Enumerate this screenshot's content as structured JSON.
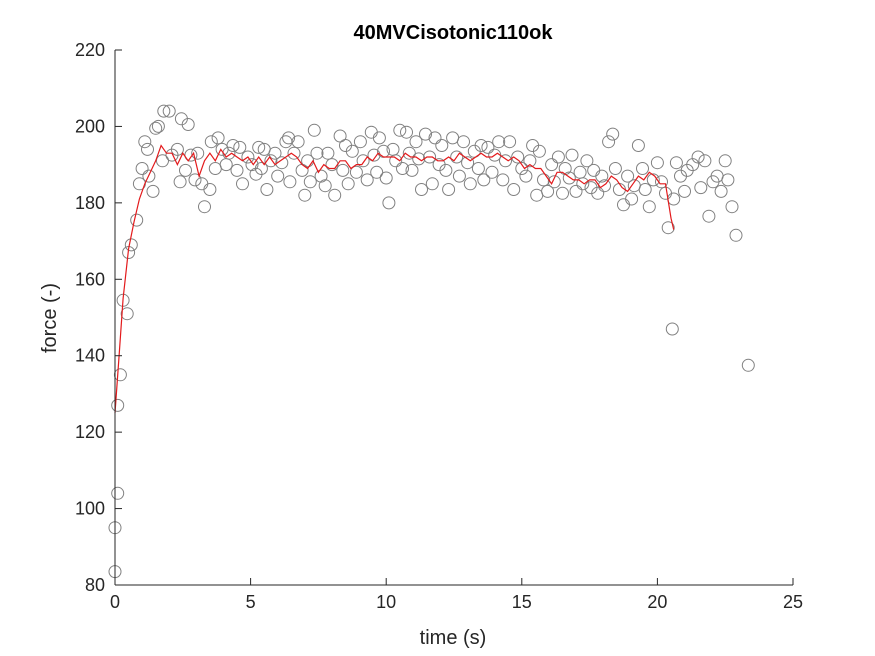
{
  "chart_data": {
    "type": "scatter",
    "title": "40MVCisotonic110ok",
    "xlabel": "time (s)",
    "ylabel": "force (-)",
    "xlim": [
      0,
      25
    ],
    "ylim": [
      80,
      220
    ],
    "xticks": [
      "0",
      "5",
      "10",
      "15",
      "20",
      "25"
    ],
    "yticks": [
      "80",
      "100",
      "120",
      "140",
      "160",
      "180",
      "200",
      "220"
    ],
    "grid": false,
    "legend": "none",
    "colors": {
      "points": "#808080",
      "line": "#e31a1c",
      "axes": "#262626"
    },
    "series": [
      {
        "type": "scatter",
        "points": [
          [
            0.0,
            83.5
          ],
          [
            0.0,
            95.0
          ],
          [
            0.1,
            104.0
          ],
          [
            0.1,
            127.0
          ],
          [
            0.2,
            135.0
          ],
          [
            0.3,
            154.5
          ],
          [
            0.45,
            151.0
          ],
          [
            0.5,
            167.0
          ],
          [
            0.6,
            169.0
          ],
          [
            0.8,
            175.5
          ],
          [
            0.9,
            185.0
          ],
          [
            1.0,
            189.0
          ],
          [
            1.1,
            196.0
          ],
          [
            1.2,
            194.0
          ],
          [
            1.25,
            187.0
          ],
          [
            1.4,
            183.0
          ],
          [
            1.5,
            199.5
          ],
          [
            1.6,
            200.0
          ],
          [
            1.75,
            191.0
          ],
          [
            1.8,
            204.0
          ],
          [
            2.0,
            204.0
          ],
          [
            2.1,
            192.5
          ],
          [
            2.3,
            194.0
          ],
          [
            2.4,
            185.5
          ],
          [
            2.45,
            202.0
          ],
          [
            2.6,
            188.5
          ],
          [
            2.7,
            200.5
          ],
          [
            2.8,
            192.5
          ],
          [
            2.95,
            186.0
          ],
          [
            3.05,
            193.0
          ],
          [
            3.2,
            185.0
          ],
          [
            3.3,
            179.0
          ],
          [
            3.5,
            183.5
          ],
          [
            3.55,
            196.0
          ],
          [
            3.7,
            189.0
          ],
          [
            3.8,
            197.0
          ],
          [
            3.95,
            194.0
          ],
          [
            4.1,
            190.0
          ],
          [
            4.2,
            193.0
          ],
          [
            4.35,
            195.0
          ],
          [
            4.5,
            188.5
          ],
          [
            4.6,
            194.5
          ],
          [
            4.7,
            185.0
          ],
          [
            4.9,
            192.0
          ],
          [
            5.05,
            190.0
          ],
          [
            5.2,
            187.5
          ],
          [
            5.3,
            194.5
          ],
          [
            5.4,
            189.0
          ],
          [
            5.5,
            194.0
          ],
          [
            5.6,
            183.5
          ],
          [
            5.75,
            191.0
          ],
          [
            5.9,
            193.0
          ],
          [
            6.0,
            187.0
          ],
          [
            6.15,
            190.5
          ],
          [
            6.3,
            196.0
          ],
          [
            6.4,
            197.0
          ],
          [
            6.45,
            185.5
          ],
          [
            6.6,
            193.0
          ],
          [
            6.75,
            196.0
          ],
          [
            6.9,
            188.5
          ],
          [
            7.0,
            182.0
          ],
          [
            7.1,
            191.0
          ],
          [
            7.2,
            185.5
          ],
          [
            7.35,
            199.0
          ],
          [
            7.45,
            193.0
          ],
          [
            7.6,
            187.0
          ],
          [
            7.75,
            184.5
          ],
          [
            7.85,
            193.0
          ],
          [
            8.0,
            190.0
          ],
          [
            8.1,
            182.0
          ],
          [
            8.3,
            197.5
          ],
          [
            8.4,
            188.5
          ],
          [
            8.5,
            195.0
          ],
          [
            8.6,
            185.0
          ],
          [
            8.75,
            193.5
          ],
          [
            8.9,
            188.0
          ],
          [
            9.05,
            196.0
          ],
          [
            9.15,
            191.0
          ],
          [
            9.3,
            186.0
          ],
          [
            9.45,
            198.5
          ],
          [
            9.55,
            192.5
          ],
          [
            9.65,
            188.0
          ],
          [
            9.75,
            197.0
          ],
          [
            9.9,
            193.5
          ],
          [
            10.0,
            186.5
          ],
          [
            10.1,
            180.0
          ],
          [
            10.25,
            194.0
          ],
          [
            10.35,
            191.0
          ],
          [
            10.5,
            199.0
          ],
          [
            10.6,
            189.0
          ],
          [
            10.75,
            198.5
          ],
          [
            10.85,
            193.0
          ],
          [
            10.95,
            188.5
          ],
          [
            11.1,
            196.0
          ],
          [
            11.2,
            191.5
          ],
          [
            11.3,
            183.5
          ],
          [
            11.45,
            198.0
          ],
          [
            11.6,
            192.0
          ],
          [
            11.7,
            185.0
          ],
          [
            11.8,
            197.0
          ],
          [
            11.95,
            190.0
          ],
          [
            12.05,
            195.0
          ],
          [
            12.2,
            188.5
          ],
          [
            12.3,
            183.5
          ],
          [
            12.45,
            197.0
          ],
          [
            12.6,
            192.0
          ],
          [
            12.7,
            187.0
          ],
          [
            12.85,
            196.0
          ],
          [
            13.0,
            190.5
          ],
          [
            13.1,
            185.0
          ],
          [
            13.25,
            193.5
          ],
          [
            13.4,
            189.0
          ],
          [
            13.5,
            195.0
          ],
          [
            13.6,
            186.0
          ],
          [
            13.75,
            194.5
          ],
          [
            13.9,
            188.0
          ],
          [
            14.0,
            192.5
          ],
          [
            14.15,
            196.0
          ],
          [
            14.3,
            186.0
          ],
          [
            14.4,
            191.0
          ],
          [
            14.55,
            196.0
          ],
          [
            14.7,
            183.5
          ],
          [
            14.85,
            192.0
          ],
          [
            15.0,
            189.0
          ],
          [
            15.15,
            187.0
          ],
          [
            15.3,
            191.0
          ],
          [
            15.4,
            195.0
          ],
          [
            15.55,
            182.0
          ],
          [
            15.65,
            193.5
          ],
          [
            15.8,
            186.0
          ],
          [
            15.95,
            183.0
          ],
          [
            16.1,
            190.0
          ],
          [
            16.2,
            185.5
          ],
          [
            16.35,
            192.0
          ],
          [
            16.5,
            182.5
          ],
          [
            16.6,
            189.0
          ],
          [
            16.75,
            186.5
          ],
          [
            16.85,
            192.5
          ],
          [
            17.0,
            183.0
          ],
          [
            17.15,
            188.0
          ],
          [
            17.25,
            185.0
          ],
          [
            17.4,
            191.0
          ],
          [
            17.55,
            184.0
          ],
          [
            17.65,
            188.5
          ],
          [
            17.8,
            182.5
          ],
          [
            17.95,
            187.0
          ],
          [
            18.05,
            184.5
          ],
          [
            18.2,
            196.0
          ],
          [
            18.35,
            198.0
          ],
          [
            18.45,
            189.0
          ],
          [
            18.6,
            183.5
          ],
          [
            18.75,
            179.5
          ],
          [
            18.9,
            187.0
          ],
          [
            19.05,
            181.0
          ],
          [
            19.15,
            184.5
          ],
          [
            19.3,
            195.0
          ],
          [
            19.45,
            189.0
          ],
          [
            19.55,
            183.5
          ],
          [
            19.7,
            179.0
          ],
          [
            19.85,
            186.0
          ],
          [
            20.0,
            190.5
          ],
          [
            20.15,
            185.5
          ],
          [
            20.3,
            182.5
          ],
          [
            20.4,
            173.5
          ],
          [
            20.55,
            147.0
          ],
          [
            20.6,
            181.0
          ],
          [
            20.7,
            190.5
          ],
          [
            20.85,
            187.0
          ],
          [
            21.0,
            183.0
          ],
          [
            21.1,
            188.5
          ],
          [
            21.3,
            190.0
          ],
          [
            21.5,
            192.0
          ],
          [
            21.6,
            184.0
          ],
          [
            21.75,
            191.0
          ],
          [
            21.9,
            176.5
          ],
          [
            22.05,
            185.5
          ],
          [
            22.2,
            187.0
          ],
          [
            22.35,
            183.0
          ],
          [
            22.5,
            191.0
          ],
          [
            22.6,
            186.0
          ],
          [
            22.75,
            179.0
          ],
          [
            22.9,
            171.5
          ],
          [
            23.35,
            137.5
          ]
        ]
      },
      {
        "type": "line",
        "points": [
          [
            0.0,
            125
          ],
          [
            0.15,
            140
          ],
          [
            0.3,
            155
          ],
          [
            0.5,
            168
          ],
          [
            0.7,
            175
          ],
          [
            0.9,
            181
          ],
          [
            1.1,
            185
          ],
          [
            1.3,
            188
          ],
          [
            1.5,
            191
          ],
          [
            1.7,
            195
          ],
          [
            1.9,
            193
          ],
          [
            2.1,
            193
          ],
          [
            2.3,
            190
          ],
          [
            2.5,
            193
          ],
          [
            2.7,
            191
          ],
          [
            2.9,
            193
          ],
          [
            3.1,
            187
          ],
          [
            3.3,
            191
          ],
          [
            3.5,
            193
          ],
          [
            3.7,
            191
          ],
          [
            3.9,
            194
          ],
          [
            4.1,
            192
          ],
          [
            4.3,
            193
          ],
          [
            4.5,
            192
          ],
          [
            4.7,
            191
          ],
          [
            4.9,
            192
          ],
          [
            5.1,
            190
          ],
          [
            5.3,
            192
          ],
          [
            5.5,
            190
          ],
          [
            5.7,
            192
          ],
          [
            5.9,
            190
          ],
          [
            6.1,
            191
          ],
          [
            6.3,
            192
          ],
          [
            6.5,
            193
          ],
          [
            6.7,
            192
          ],
          [
            6.9,
            190
          ],
          [
            7.1,
            189
          ],
          [
            7.3,
            191
          ],
          [
            7.5,
            188
          ],
          [
            7.7,
            190
          ],
          [
            7.9,
            189
          ],
          [
            8.1,
            189
          ],
          [
            8.3,
            191
          ],
          [
            8.5,
            191
          ],
          [
            8.7,
            189
          ],
          [
            8.9,
            190
          ],
          [
            9.1,
            190
          ],
          [
            9.3,
            192
          ],
          [
            9.5,
            191
          ],
          [
            9.7,
            193
          ],
          [
            9.9,
            192
          ],
          [
            10.1,
            192
          ],
          [
            10.3,
            192
          ],
          [
            10.5,
            191
          ],
          [
            10.7,
            193
          ],
          [
            10.9,
            192
          ],
          [
            11.1,
            192
          ],
          [
            11.3,
            191
          ],
          [
            11.5,
            192
          ],
          [
            11.7,
            192
          ],
          [
            11.9,
            191
          ],
          [
            12.1,
            191
          ],
          [
            12.3,
            192
          ],
          [
            12.5,
            191
          ],
          [
            12.7,
            193
          ],
          [
            12.9,
            192
          ],
          [
            13.1,
            191
          ],
          [
            13.3,
            192
          ],
          [
            13.5,
            193
          ],
          [
            13.7,
            192
          ],
          [
            13.9,
            192
          ],
          [
            14.1,
            193
          ],
          [
            14.3,
            192
          ],
          [
            14.5,
            191
          ],
          [
            14.7,
            192
          ],
          [
            14.9,
            191
          ],
          [
            15.1,
            189
          ],
          [
            15.3,
            190
          ],
          [
            15.5,
            189
          ],
          [
            15.7,
            189
          ],
          [
            15.9,
            187
          ],
          [
            16.1,
            185
          ],
          [
            16.3,
            188
          ],
          [
            16.5,
            188
          ],
          [
            16.7,
            187
          ],
          [
            16.9,
            186
          ],
          [
            17.1,
            186
          ],
          [
            17.3,
            185
          ],
          [
            17.5,
            186
          ],
          [
            17.7,
            186
          ],
          [
            17.9,
            184
          ],
          [
            18.1,
            185
          ],
          [
            18.3,
            187
          ],
          [
            18.5,
            186
          ],
          [
            18.7,
            184
          ],
          [
            18.9,
            183
          ],
          [
            19.1,
            185
          ],
          [
            19.3,
            187
          ],
          [
            19.5,
            186
          ],
          [
            19.7,
            188
          ],
          [
            19.9,
            187
          ],
          [
            20.1,
            185
          ],
          [
            20.3,
            185
          ],
          [
            20.5,
            176
          ],
          [
            20.6,
            173
          ]
        ]
      }
    ]
  }
}
